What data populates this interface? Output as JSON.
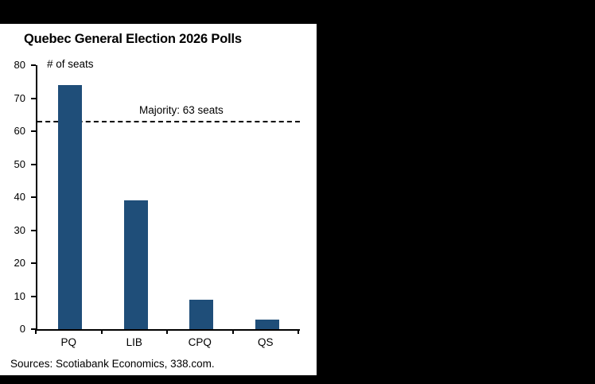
{
  "frame": {
    "background_color": "#000000",
    "panel_color": "#ffffff"
  },
  "chart_data": {
    "type": "bar",
    "title": "Quebec General Election 2026 Polls",
    "unit_label": "# of seats",
    "categories": [
      "PQ",
      "LIB",
      "CPQ",
      "QS"
    ],
    "values": [
      74,
      39,
      9,
      3
    ],
    "ylim": [
      0,
      80
    ],
    "y_ticks": [
      0,
      10,
      20,
      30,
      40,
      50,
      60,
      70,
      80
    ],
    "reference_line": {
      "value": 63,
      "label": "Majority: 63 seats",
      "style": "dashed"
    },
    "bar_color": "#1f4e79",
    "xlabel": "",
    "ylabel": "",
    "legend": "none",
    "grid": "off"
  },
  "footer": {
    "sources": "Sources: Scotiabank Economics, 338.com."
  }
}
